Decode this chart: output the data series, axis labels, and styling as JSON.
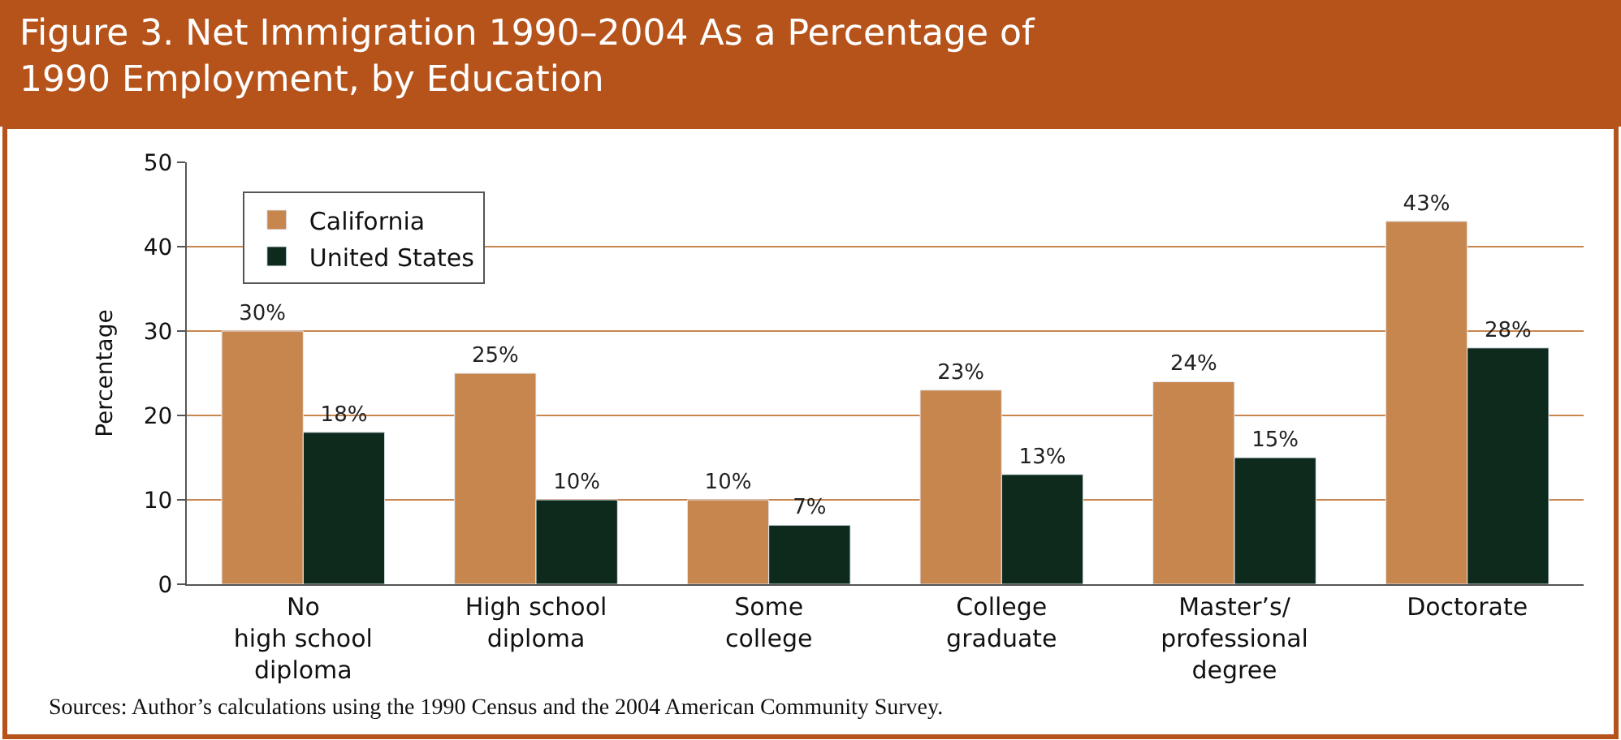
{
  "chart_data": {
    "type": "bar",
    "title": "Figure 3. Net Immigration 1990–2004 As a Percentage of\n1990 Employment, by Education",
    "ylabel": "Percentage",
    "categories": [
      "No\nhigh school\ndiploma",
      "High school\ndiploma",
      "Some\ncollege",
      "College\ngraduate",
      "Master’s/\nprofessional\ndegree",
      "Doctorate"
    ],
    "series": [
      {
        "name": "California",
        "color": "#c8864f",
        "values": [
          30,
          25,
          10,
          23,
          24,
          43
        ],
        "value_labels": [
          "30%",
          "25%",
          "10%",
          "23%",
          "24%",
          "43%"
        ]
      },
      {
        "name": "United States",
        "color": "#0d2a1c",
        "values": [
          18,
          10,
          7,
          13,
          15,
          28
        ],
        "value_labels": [
          "18%",
          "10%",
          "7%",
          "13%",
          "15%",
          "28%"
        ]
      }
    ],
    "ylim": [
      0,
      50
    ],
    "yticks": [
      0,
      10,
      20,
      30,
      40,
      50
    ],
    "grid": "y",
    "legend": "top left",
    "annotations": [
      "Sources: Author’s calculations using the 1990 Census and the 2004 American Community Survey."
    ]
  }
}
